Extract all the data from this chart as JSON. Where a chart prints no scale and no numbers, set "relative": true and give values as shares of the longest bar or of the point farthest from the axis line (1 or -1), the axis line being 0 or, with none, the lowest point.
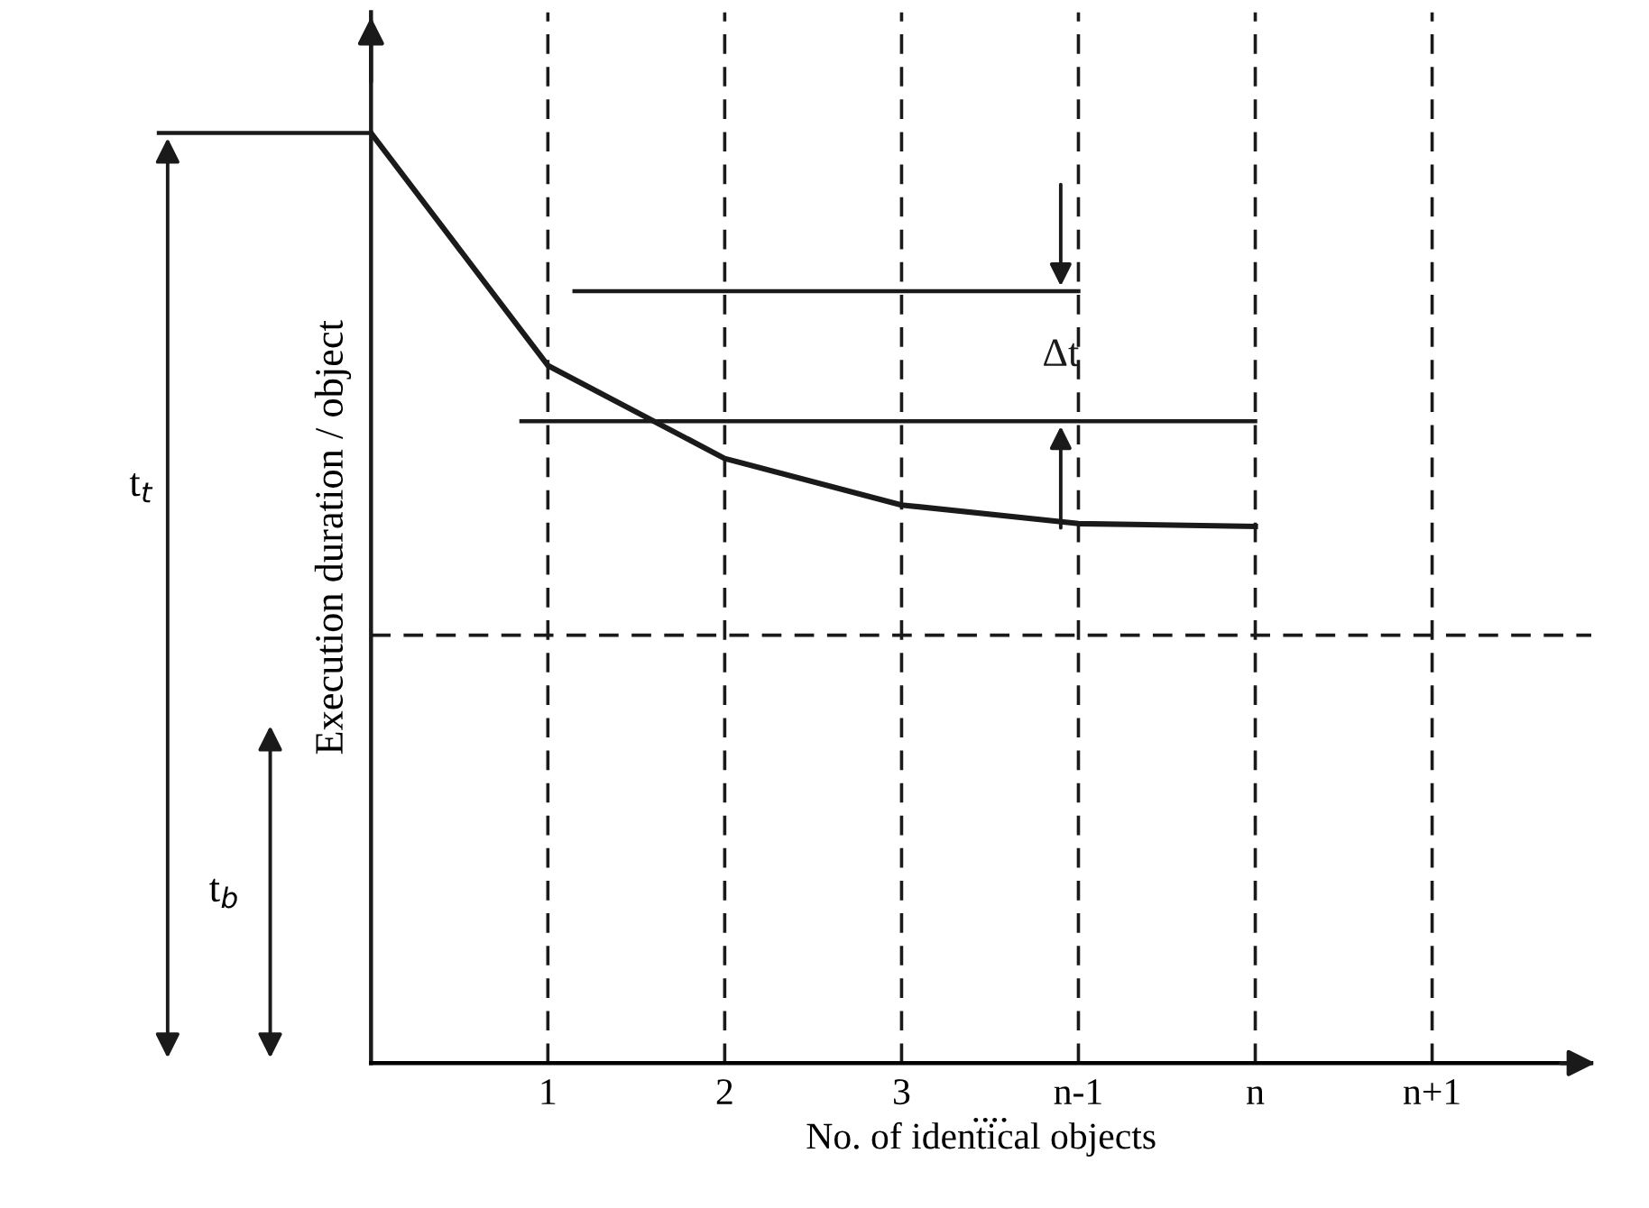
{
  "chart_data": {
    "type": "line",
    "relative": true,
    "xlabel": "No. of identical objects",
    "ylabel": "Execution duration / object",
    "categories": [
      null,
      "1",
      "2",
      "3",
      "n-1",
      "n",
      "n+1"
    ],
    "series": [
      {
        "color": "#1a1a1a",
        "values": [
          1,
          0.75,
          0.65,
          0.6,
          0.58,
          0.577,
          null
        ]
      }
    ],
    "ref_lines": [
      {
        "axis": "y",
        "value": 0.46,
        "line_style": "dashed",
        "color": "#1a1a1a"
      },
      {
        "axis": "y",
        "value": 0.83,
        "label": "Δt",
        "line_style": "solid",
        "color": "#1a1a1a"
      },
      {
        "axis": "y",
        "value": 0.69,
        "line_style": "solid",
        "color": "#1a1a1a"
      }
    ],
    "annotations": [
      "t$_{t}$",
      "t$_{b}$",
      "...."
    ],
    "grid": "x",
    "marker": "none",
    "line_style": "solid",
    "legend": false
  }
}
